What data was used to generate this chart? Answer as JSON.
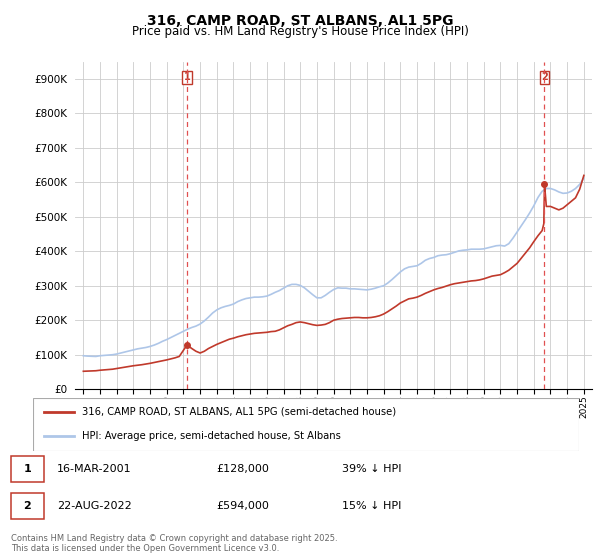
{
  "title": "316, CAMP ROAD, ST ALBANS, AL1 5PG",
  "subtitle": "Price paid vs. HM Land Registry's House Price Index (HPI)",
  "legend_line1": "316, CAMP ROAD, ST ALBANS, AL1 5PG (semi-detached house)",
  "legend_line2": "HPI: Average price, semi-detached house, St Albans",
  "annotation1_label": "1",
  "annotation1_date": "16-MAR-2001",
  "annotation1_price": "£128,000",
  "annotation1_hpi": "39% ↓ HPI",
  "annotation1_year": 2001.21,
  "annotation1_value": 128000,
  "annotation2_label": "2",
  "annotation2_date": "22-AUG-2022",
  "annotation2_price": "£594,000",
  "annotation2_hpi": "15% ↓ HPI",
  "annotation2_year": 2022.64,
  "annotation2_value": 594000,
  "ylabel_values": [
    "£0",
    "£100K",
    "£200K",
    "£300K",
    "£400K",
    "£500K",
    "£600K",
    "£700K",
    "£800K",
    "£900K"
  ],
  "ytick_values": [
    0,
    100000,
    200000,
    300000,
    400000,
    500000,
    600000,
    700000,
    800000,
    900000
  ],
  "ylim": [
    0,
    950000
  ],
  "xlim_start": 1994.5,
  "xlim_end": 2025.5,
  "background_color": "#ffffff",
  "grid_color": "#cccccc",
  "hpi_line_color": "#aec6e8",
  "price_line_color": "#c0392b",
  "annotation_line_color": "#e05050",
  "footer": "Contains HM Land Registry data © Crown copyright and database right 2025.\nThis data is licensed under the Open Government Licence v3.0.",
  "hpi_data": [
    [
      1995.0,
      97000
    ],
    [
      1995.25,
      96000
    ],
    [
      1995.5,
      95500
    ],
    [
      1995.75,
      95000
    ],
    [
      1996.0,
      97000
    ],
    [
      1996.25,
      98000
    ],
    [
      1996.5,
      99000
    ],
    [
      1996.75,
      100000
    ],
    [
      1997.0,
      102000
    ],
    [
      1997.25,
      105000
    ],
    [
      1997.5,
      108000
    ],
    [
      1997.75,
      111000
    ],
    [
      1998.0,
      114000
    ],
    [
      1998.25,
      117000
    ],
    [
      1998.5,
      119000
    ],
    [
      1998.75,
      121000
    ],
    [
      1999.0,
      124000
    ],
    [
      1999.25,
      128000
    ],
    [
      1999.5,
      133000
    ],
    [
      1999.75,
      139000
    ],
    [
      2000.0,
      144000
    ],
    [
      2000.25,
      150000
    ],
    [
      2000.5,
      156000
    ],
    [
      2000.75,
      162000
    ],
    [
      2001.0,
      168000
    ],
    [
      2001.25,
      174000
    ],
    [
      2001.5,
      179000
    ],
    [
      2001.75,
      183000
    ],
    [
      2002.0,
      189000
    ],
    [
      2002.25,
      198000
    ],
    [
      2002.5,
      209000
    ],
    [
      2002.75,
      221000
    ],
    [
      2003.0,
      230000
    ],
    [
      2003.25,
      236000
    ],
    [
      2003.5,
      240000
    ],
    [
      2003.75,
      243000
    ],
    [
      2004.0,
      247000
    ],
    [
      2004.25,
      254000
    ],
    [
      2004.5,
      259000
    ],
    [
      2004.75,
      263000
    ],
    [
      2005.0,
      265000
    ],
    [
      2005.25,
      267000
    ],
    [
      2005.5,
      267000
    ],
    [
      2005.75,
      268000
    ],
    [
      2006.0,
      270000
    ],
    [
      2006.25,
      275000
    ],
    [
      2006.5,
      281000
    ],
    [
      2006.75,
      286000
    ],
    [
      2007.0,
      293000
    ],
    [
      2007.25,
      300000
    ],
    [
      2007.5,
      304000
    ],
    [
      2007.75,
      304000
    ],
    [
      2008.0,
      301000
    ],
    [
      2008.25,
      294000
    ],
    [
      2008.5,
      284000
    ],
    [
      2008.75,
      274000
    ],
    [
      2009.0,
      265000
    ],
    [
      2009.25,
      265000
    ],
    [
      2009.5,
      272000
    ],
    [
      2009.75,
      281000
    ],
    [
      2010.0,
      289000
    ],
    [
      2010.25,
      294000
    ],
    [
      2010.5,
      293000
    ],
    [
      2010.75,
      293000
    ],
    [
      2011.0,
      291000
    ],
    [
      2011.25,
      291000
    ],
    [
      2011.5,
      290000
    ],
    [
      2011.75,
      289000
    ],
    [
      2012.0,
      288000
    ],
    [
      2012.25,
      290000
    ],
    [
      2012.5,
      293000
    ],
    [
      2012.75,
      297000
    ],
    [
      2013.0,
      300000
    ],
    [
      2013.25,
      308000
    ],
    [
      2013.5,
      318000
    ],
    [
      2013.75,
      329000
    ],
    [
      2014.0,
      340000
    ],
    [
      2014.25,
      349000
    ],
    [
      2014.5,
      354000
    ],
    [
      2014.75,
      356000
    ],
    [
      2015.0,
      358000
    ],
    [
      2015.25,
      365000
    ],
    [
      2015.5,
      374000
    ],
    [
      2015.75,
      379000
    ],
    [
      2016.0,
      382000
    ],
    [
      2016.25,
      387000
    ],
    [
      2016.5,
      389000
    ],
    [
      2016.75,
      390000
    ],
    [
      2017.0,
      393000
    ],
    [
      2017.25,
      397000
    ],
    [
      2017.5,
      401000
    ],
    [
      2017.75,
      403000
    ],
    [
      2018.0,
      404000
    ],
    [
      2018.25,
      406000
    ],
    [
      2018.5,
      406000
    ],
    [
      2018.75,
      406000
    ],
    [
      2019.0,
      407000
    ],
    [
      2019.25,
      410000
    ],
    [
      2019.5,
      413000
    ],
    [
      2019.75,
      416000
    ],
    [
      2020.0,
      417000
    ],
    [
      2020.25,
      415000
    ],
    [
      2020.5,
      422000
    ],
    [
      2020.75,
      438000
    ],
    [
      2021.0,
      456000
    ],
    [
      2021.25,
      474000
    ],
    [
      2021.5,
      492000
    ],
    [
      2021.75,
      511000
    ],
    [
      2022.0,
      532000
    ],
    [
      2022.25,
      556000
    ],
    [
      2022.5,
      574000
    ],
    [
      2022.75,
      582000
    ],
    [
      2023.0,
      582000
    ],
    [
      2023.25,
      578000
    ],
    [
      2023.5,
      572000
    ],
    [
      2023.75,
      568000
    ],
    [
      2024.0,
      569000
    ],
    [
      2024.25,
      574000
    ],
    [
      2024.5,
      582000
    ],
    [
      2024.75,
      594000
    ],
    [
      2025.0,
      612000
    ]
  ],
  "price_data": [
    [
      1995.0,
      52000
    ],
    [
      1995.25,
      52500
    ],
    [
      1995.5,
      53000
    ],
    [
      1995.75,
      53500
    ],
    [
      1996.0,
      55000
    ],
    [
      1996.25,
      56000
    ],
    [
      1996.5,
      57000
    ],
    [
      1996.75,
      58000
    ],
    [
      1997.0,
      60000
    ],
    [
      1997.25,
      62000
    ],
    [
      1997.5,
      64000
    ],
    [
      1997.75,
      66000
    ],
    [
      1998.0,
      68000
    ],
    [
      1998.25,
      69500
    ],
    [
      1998.5,
      71000
    ],
    [
      1998.75,
      73000
    ],
    [
      1999.0,
      75000
    ],
    [
      1999.25,
      77500
    ],
    [
      1999.5,
      80000
    ],
    [
      1999.75,
      82500
    ],
    [
      2000.0,
      85000
    ],
    [
      2000.25,
      88000
    ],
    [
      2000.5,
      91000
    ],
    [
      2000.75,
      95000
    ],
    [
      2001.21,
      128000
    ],
    [
      2001.5,
      118000
    ],
    [
      2001.75,
      110000
    ],
    [
      2002.0,
      105000
    ],
    [
      2002.25,
      110000
    ],
    [
      2002.5,
      118000
    ],
    [
      2002.75,
      124000
    ],
    [
      2003.0,
      130000
    ],
    [
      2003.25,
      135000
    ],
    [
      2003.5,
      140000
    ],
    [
      2003.75,
      145000
    ],
    [
      2004.0,
      148000
    ],
    [
      2004.25,
      152000
    ],
    [
      2004.5,
      155000
    ],
    [
      2004.75,
      158000
    ],
    [
      2005.0,
      160000
    ],
    [
      2005.25,
      162000
    ],
    [
      2005.5,
      163000
    ],
    [
      2005.75,
      164000
    ],
    [
      2006.0,
      165000
    ],
    [
      2006.25,
      167000
    ],
    [
      2006.5,
      168000
    ],
    [
      2006.75,
      172000
    ],
    [
      2007.0,
      178000
    ],
    [
      2007.25,
      184000
    ],
    [
      2007.5,
      188000
    ],
    [
      2007.75,
      193000
    ],
    [
      2008.0,
      195000
    ],
    [
      2008.25,
      193000
    ],
    [
      2008.5,
      190000
    ],
    [
      2008.75,
      187000
    ],
    [
      2009.0,
      185000
    ],
    [
      2009.25,
      186000
    ],
    [
      2009.5,
      188000
    ],
    [
      2009.75,
      193000
    ],
    [
      2010.0,
      200000
    ],
    [
      2010.25,
      203000
    ],
    [
      2010.5,
      205000
    ],
    [
      2010.75,
      206000
    ],
    [
      2011.0,
      207000
    ],
    [
      2011.25,
      208000
    ],
    [
      2011.5,
      208000
    ],
    [
      2011.75,
      207000
    ],
    [
      2012.0,
      207000
    ],
    [
      2012.25,
      208000
    ],
    [
      2012.5,
      210000
    ],
    [
      2012.75,
      213000
    ],
    [
      2013.0,
      218000
    ],
    [
      2013.25,
      225000
    ],
    [
      2013.5,
      233000
    ],
    [
      2013.75,
      241000
    ],
    [
      2014.0,
      250000
    ],
    [
      2014.25,
      256000
    ],
    [
      2014.5,
      262000
    ],
    [
      2014.75,
      264000
    ],
    [
      2015.0,
      267000
    ],
    [
      2015.25,
      272000
    ],
    [
      2015.5,
      278000
    ],
    [
      2015.75,
      283000
    ],
    [
      2016.0,
      288000
    ],
    [
      2016.25,
      292000
    ],
    [
      2016.5,
      295000
    ],
    [
      2016.75,
      299000
    ],
    [
      2017.0,
      303000
    ],
    [
      2017.25,
      306000
    ],
    [
      2017.5,
      308000
    ],
    [
      2017.75,
      310000
    ],
    [
      2018.0,
      312000
    ],
    [
      2018.25,
      314000
    ],
    [
      2018.5,
      315000
    ],
    [
      2018.75,
      317000
    ],
    [
      2019.0,
      320000
    ],
    [
      2019.25,
      324000
    ],
    [
      2019.5,
      328000
    ],
    [
      2019.75,
      330000
    ],
    [
      2020.0,
      332000
    ],
    [
      2020.25,
      338000
    ],
    [
      2020.5,
      345000
    ],
    [
      2020.75,
      355000
    ],
    [
      2021.0,
      365000
    ],
    [
      2021.25,
      380000
    ],
    [
      2021.5,
      395000
    ],
    [
      2021.75,
      410000
    ],
    [
      2022.0,
      428000
    ],
    [
      2022.25,
      445000
    ],
    [
      2022.5,
      460000
    ],
    [
      2022.6,
      480000
    ],
    [
      2022.64,
      594000
    ],
    [
      2022.7,
      560000
    ],
    [
      2022.75,
      530000
    ],
    [
      2023.0,
      530000
    ],
    [
      2023.25,
      525000
    ],
    [
      2023.5,
      520000
    ],
    [
      2023.75,
      525000
    ],
    [
      2024.0,
      535000
    ],
    [
      2024.25,
      545000
    ],
    [
      2024.5,
      555000
    ],
    [
      2024.75,
      580000
    ],
    [
      2025.0,
      620000
    ]
  ]
}
